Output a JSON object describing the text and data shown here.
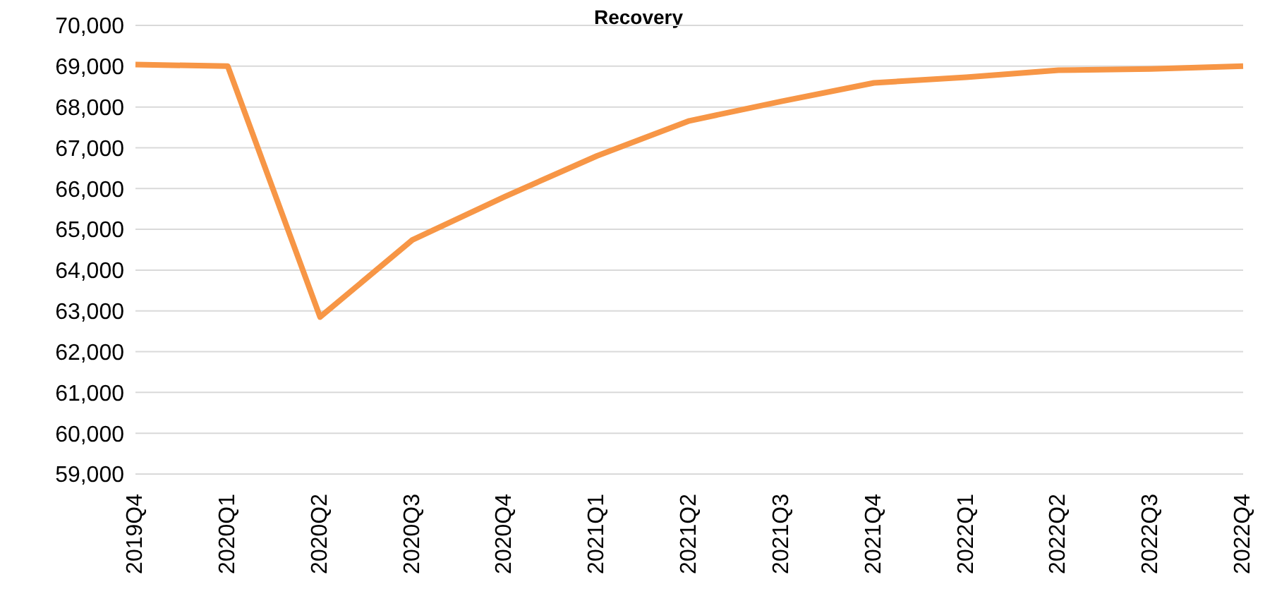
{
  "chart_data": {
    "type": "line",
    "title": "Recovery",
    "categories": [
      "2019Q4",
      "2020Q1",
      "2020Q2",
      "2020Q3",
      "2020Q4",
      "2021Q1",
      "2021Q2",
      "2021Q3",
      "2021Q4",
      "2022Q1",
      "2022Q2",
      "2022Q3",
      "2022Q4"
    ],
    "series": [
      {
        "color": "#f79646",
        "values": [
          69040,
          69000,
          62850,
          64740,
          65800,
          66800,
          67660,
          68140,
          68590,
          68730,
          68900,
          68930,
          69000
        ]
      }
    ],
    "ylim": [
      59000,
      70000
    ],
    "yticks": [
      {
        "value": 59000,
        "label": "59,000"
      },
      {
        "value": 60000,
        "label": "60,000"
      },
      {
        "value": 61000,
        "label": "61,000"
      },
      {
        "value": 62000,
        "label": "62,000"
      },
      {
        "value": 63000,
        "label": "63,000"
      },
      {
        "value": 64000,
        "label": "64,000"
      },
      {
        "value": 65000,
        "label": "65,000"
      },
      {
        "value": 66000,
        "label": "66,000"
      },
      {
        "value": 67000,
        "label": "67,000"
      },
      {
        "value": 68000,
        "label": "68,000"
      },
      {
        "value": 69000,
        "label": "69,000"
      },
      {
        "value": 70000,
        "label": "70,000"
      }
    ],
    "grid": "y",
    "legend": false,
    "marker": "none",
    "line_style": "solid"
  }
}
